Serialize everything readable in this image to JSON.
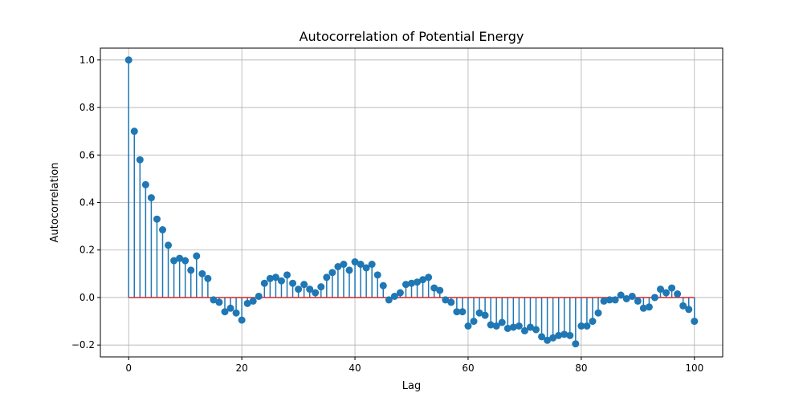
{
  "chart_data": {
    "type": "stem",
    "title": "Autocorrelation of Potential Energy",
    "xlabel": "Lag",
    "ylabel": "Autocorrelation",
    "xlim": [
      -5,
      105
    ],
    "ylim": [
      -0.25,
      1.05
    ],
    "xticks": [
      0,
      20,
      40,
      60,
      80,
      100
    ],
    "xtick_labels": [
      "0",
      "20",
      "40",
      "60",
      "80",
      "100"
    ],
    "yticks": [
      -0.2,
      0.0,
      0.2,
      0.4,
      0.6,
      0.8,
      1.0
    ],
    "ytick_labels": [
      "−0.2",
      "0.0",
      "0.2",
      "0.4",
      "0.6",
      "0.8",
      "1.0"
    ],
    "grid": true,
    "baseline": 0,
    "colors": {
      "stem": "#1f77b4",
      "marker": "#1f77b4",
      "baseline": "#d62728",
      "grid": "#b0b0b0"
    },
    "x": [
      0,
      1,
      2,
      3,
      4,
      5,
      6,
      7,
      8,
      9,
      10,
      11,
      12,
      13,
      14,
      15,
      16,
      17,
      18,
      19,
      20,
      21,
      22,
      23,
      24,
      25,
      26,
      27,
      28,
      29,
      30,
      31,
      32,
      33,
      34,
      35,
      36,
      37,
      38,
      39,
      40,
      41,
      42,
      43,
      44,
      45,
      46,
      47,
      48,
      49,
      50,
      51,
      52,
      53,
      54,
      55,
      56,
      57,
      58,
      59,
      60,
      61,
      62,
      63,
      64,
      65,
      66,
      67,
      68,
      69,
      70,
      71,
      72,
      73,
      74,
      75,
      76,
      77,
      78,
      79,
      80,
      81,
      82,
      83,
      84,
      85,
      86,
      87,
      88,
      89,
      90,
      91,
      92,
      93,
      94,
      95,
      96,
      97,
      98,
      99,
      100
    ],
    "values": [
      1.0,
      0.7,
      0.58,
      0.475,
      0.42,
      0.33,
      0.285,
      0.22,
      0.155,
      0.165,
      0.155,
      0.115,
      0.175,
      0.1,
      0.08,
      -0.01,
      -0.02,
      -0.06,
      -0.045,
      -0.065,
      -0.095,
      -0.025,
      -0.015,
      0.005,
      0.06,
      0.08,
      0.085,
      0.07,
      0.095,
      0.06,
      0.035,
      0.055,
      0.035,
      0.02,
      0.045,
      0.085,
      0.105,
      0.13,
      0.14,
      0.115,
      0.15,
      0.14,
      0.125,
      0.14,
      0.095,
      0.05,
      -0.01,
      0.005,
      0.02,
      0.055,
      0.06,
      0.065,
      0.075,
      0.085,
      0.04,
      0.03,
      -0.01,
      -0.02,
      -0.06,
      -0.06,
      -0.12,
      -0.1,
      -0.065,
      -0.075,
      -0.115,
      -0.12,
      -0.105,
      -0.13,
      -0.125,
      -0.12,
      -0.14,
      -0.125,
      -0.135,
      -0.165,
      -0.18,
      -0.17,
      -0.16,
      -0.155,
      -0.16,
      -0.195,
      -0.12,
      -0.12,
      -0.1,
      -0.065,
      -0.015,
      -0.01,
      -0.01,
      0.01,
      -0.005,
      0.005,
      -0.015,
      -0.045,
      -0.04,
      0.0,
      0.035,
      0.02,
      0.04,
      0.015,
      -0.035,
      -0.05,
      -0.1
    ]
  }
}
